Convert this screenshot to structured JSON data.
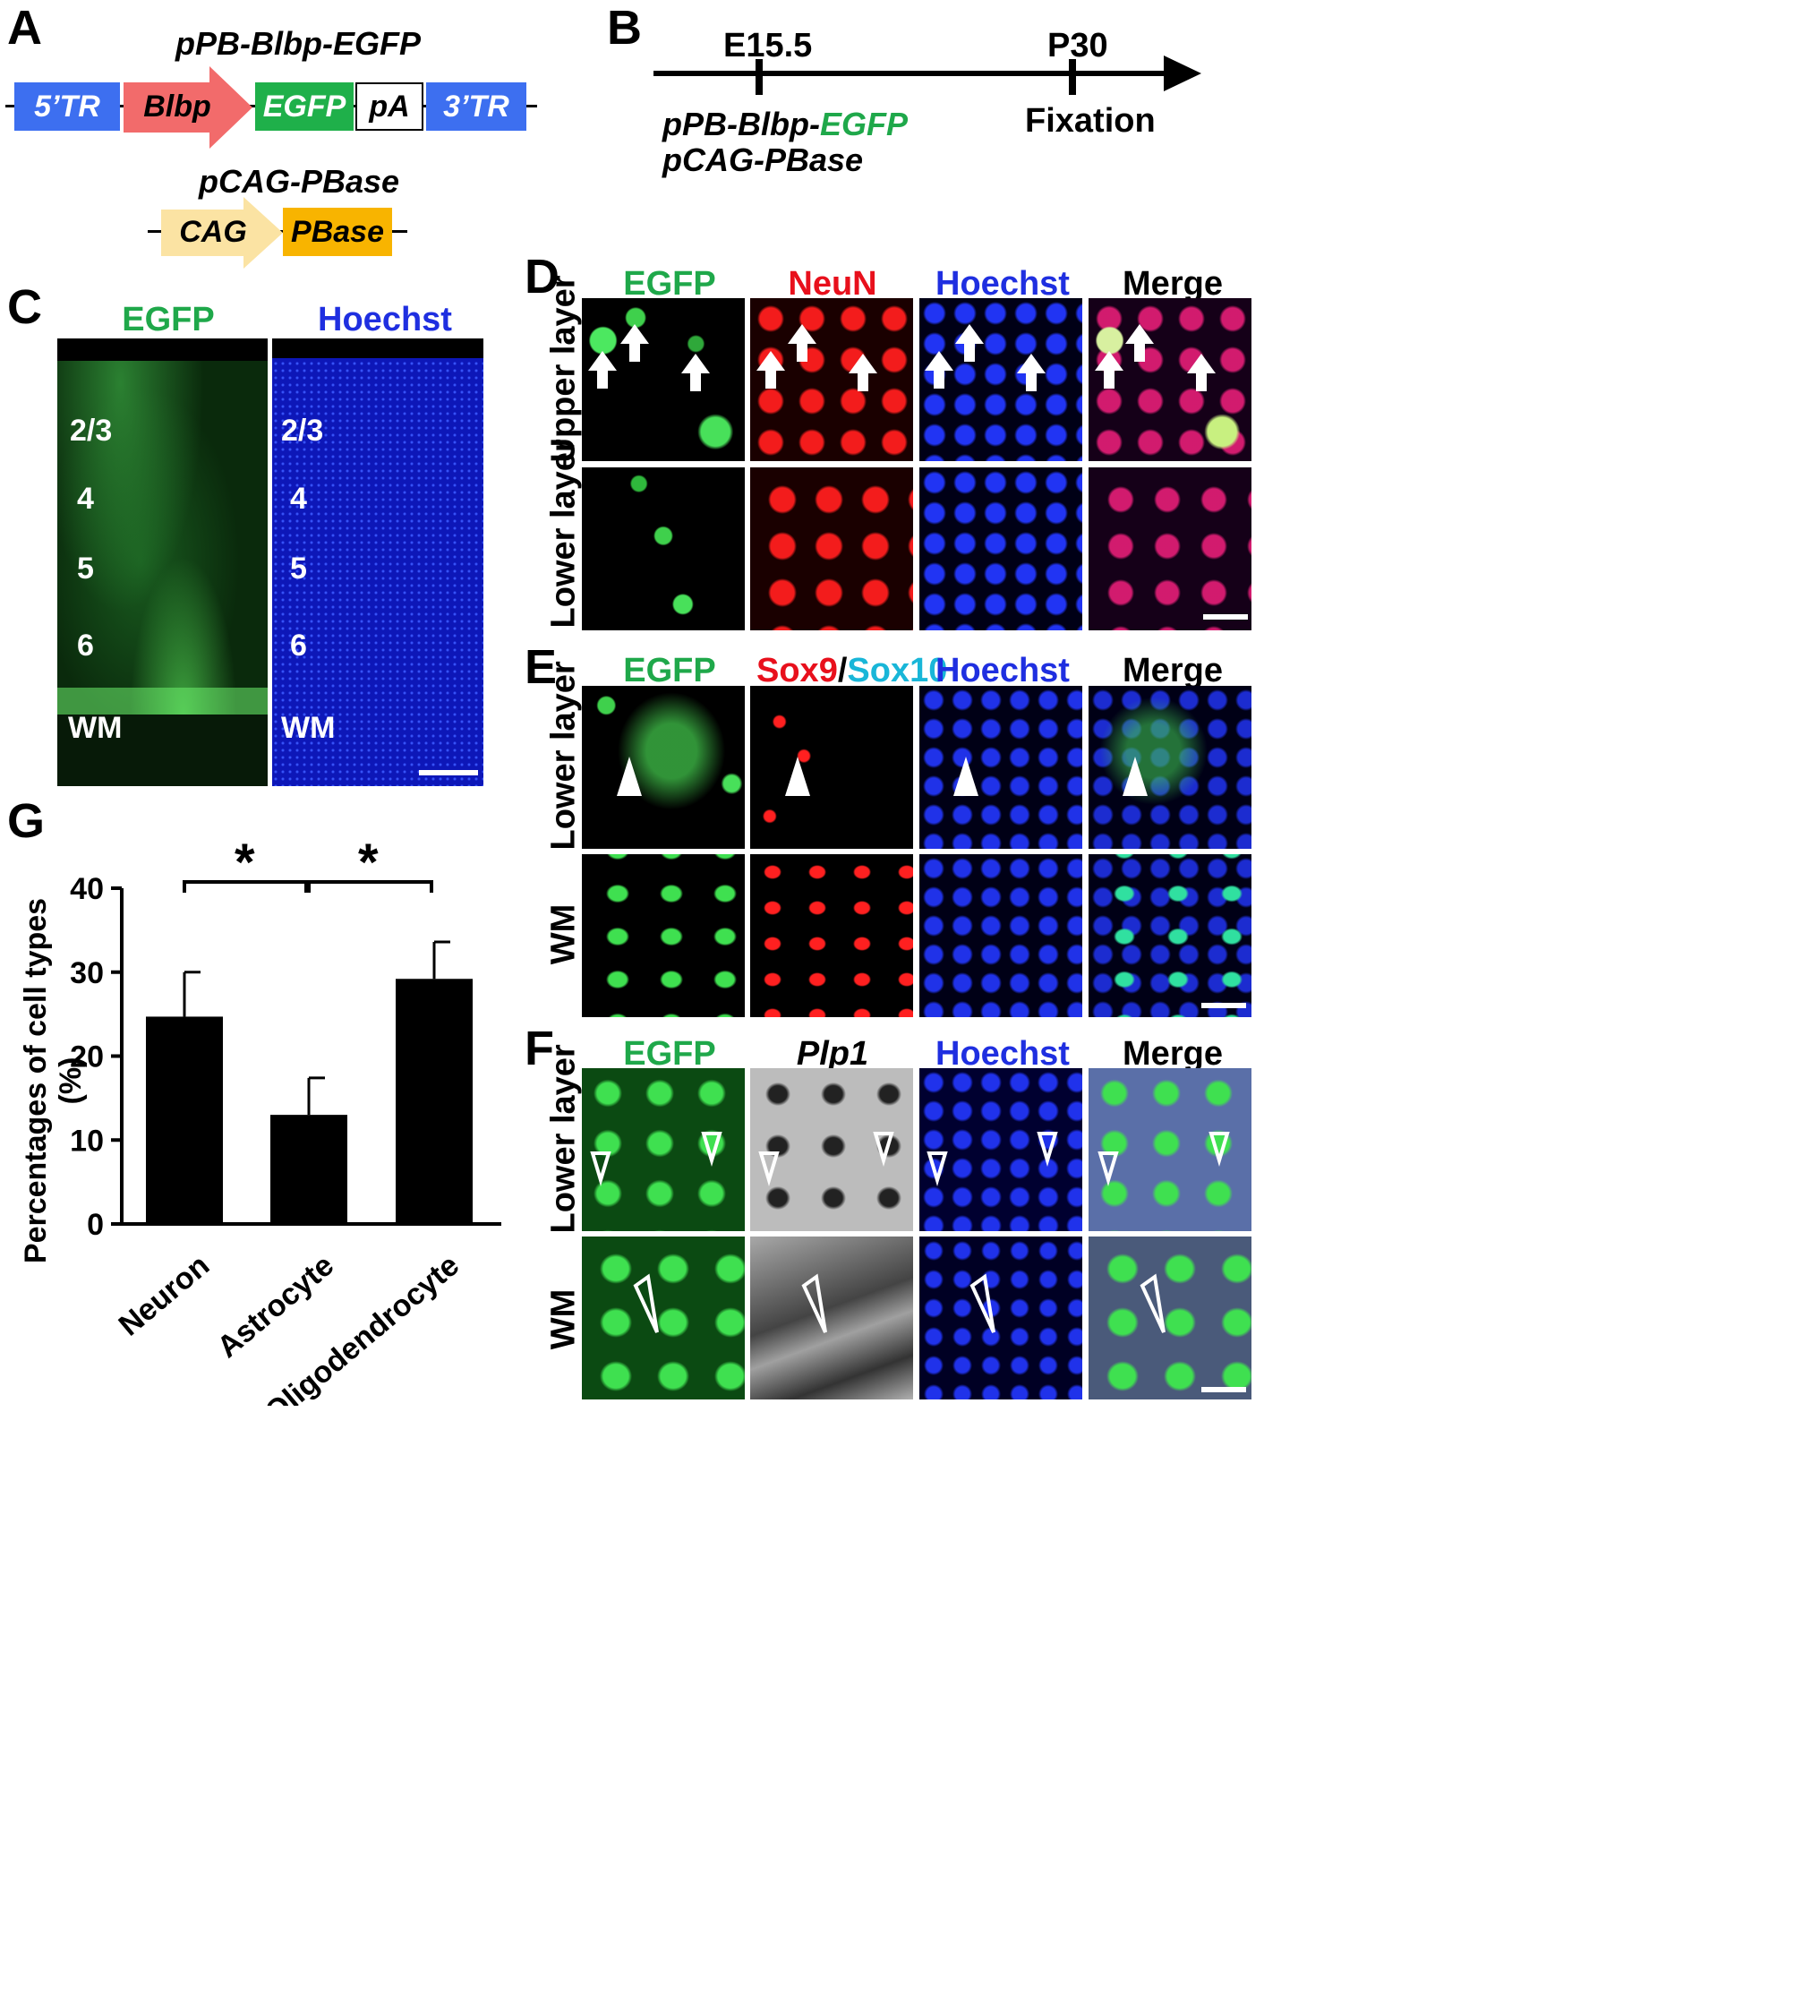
{
  "panels": {
    "A": {
      "label": "A",
      "construct1_title": "pPB-Blbp-EGFP",
      "construct1_elements": [
        "5’TR",
        "Blbp",
        "EGFP",
        "pA",
        "3’TR"
      ],
      "construct2_title": "pCAG-PBase",
      "construct2_elements": [
        "CAG",
        "PBase"
      ],
      "colors": {
        "tr": "#3d6ff0",
        "blbp": "#f26b6b",
        "egfp": "#1fb04a",
        "pa": "#ffffff",
        "cag": "#fbe3a3",
        "pbase": "#f8b400"
      }
    },
    "B": {
      "label": "B",
      "tp1": "E15.5",
      "tp2": "P30",
      "plasmid1_prefix": "pPB-Blbp-",
      "plasmid1_green": "EGFP",
      "plasmid2": "pCAG-PBase",
      "event2": "Fixation"
    },
    "C": {
      "label": "C",
      "col1": "EGFP",
      "col2": "Hoechst",
      "layers": [
        "2/3",
        "4",
        "5",
        "6",
        "WM"
      ]
    },
    "D": {
      "label": "D",
      "cols": [
        "EGFP",
        "NeuN",
        "Hoechst",
        "Merge"
      ],
      "rows": [
        "Upper layer",
        "Lower layer"
      ]
    },
    "E": {
      "label": "E",
      "cols": [
        "EGFP",
        "Sox9",
        "/",
        "Sox10",
        "Hoechst",
        "Merge"
      ],
      "rows": [
        "Lower layer",
        "WM"
      ]
    },
    "F": {
      "label": "F",
      "cols": [
        "EGFP",
        "Plp1",
        "Hoechst",
        "Merge"
      ],
      "rows": [
        "Lower layer",
        "WM"
      ]
    },
    "G": {
      "label": "G",
      "sig1": "*",
      "sig2": "*"
    }
  },
  "chart_data": {
    "type": "bar",
    "categories": [
      "Neuron",
      "Astrocyte",
      "Oligodendrocyte"
    ],
    "values": [
      24.7,
      13.0,
      29.2
    ],
    "errors": [
      5.3,
      4.4,
      4.4
    ],
    "ylabel": "Percentages of cell types (%)",
    "xlabel": "",
    "ylim": [
      0,
      40
    ],
    "yticks": [
      0,
      10,
      20,
      30,
      40
    ],
    "bar_color": "#000000",
    "significance": [
      "Neuron vs Astrocyte: *",
      "Astrocyte vs Oligodendrocyte: *"
    ]
  },
  "colors": {
    "egfp_green": "#1fa84a",
    "neun_red": "#e8101c",
    "hoechst_blue": "#1f2fe0",
    "sox10_cyan": "#19b6d8"
  }
}
